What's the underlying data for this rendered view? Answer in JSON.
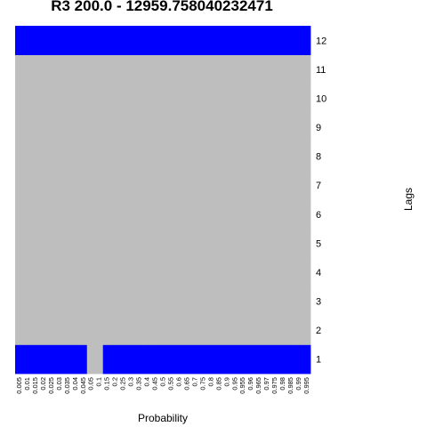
{
  "chart_data": {
    "type": "heatmap",
    "title": "R3 200.0 - 12959.758040232471",
    "xlabel": "Probability",
    "ylabel": "Lags",
    "x": [
      "0.005",
      "0.01",
      "0.015",
      "0.02",
      "0.025",
      "0.03",
      "0.035",
      "0.04",
      "0.045",
      "0.05",
      "0.1",
      "0.15",
      "0.2",
      "0.25",
      "0.3",
      "0.35",
      "0.4",
      "0.45",
      "0.5",
      "0.55",
      "0.6",
      "0.65",
      "0.7",
      "0.75",
      "0.8",
      "0.85",
      "0.9",
      "0.95",
      "0.955",
      "0.96",
      "0.965",
      "0.97",
      "0.975",
      "0.98",
      "0.985",
      "0.99",
      "0.995"
    ],
    "y": [
      "1",
      "2",
      "3",
      "4",
      "5",
      "6",
      "7",
      "8",
      "9",
      "10",
      "11",
      "12"
    ],
    "colors": {
      "1": "#0000ff",
      "0": "#bebebe"
    },
    "rows": [
      [
        1,
        1,
        1,
        1,
        1,
        1,
        1,
        1,
        1,
        0,
        0,
        1,
        1,
        1,
        1,
        1,
        1,
        1,
        1,
        1,
        1,
        1,
        1,
        1,
        1,
        1,
        1,
        1,
        1,
        1,
        1,
        1,
        1,
        1,
        1,
        1,
        1
      ],
      [
        0,
        0,
        0,
        0,
        0,
        0,
        0,
        0,
        0,
        0,
        0,
        0,
        0,
        0,
        0,
        0,
        0,
        0,
        0,
        0,
        0,
        0,
        0,
        0,
        0,
        0,
        0,
        0,
        0,
        0,
        0,
        0,
        0,
        0,
        0,
        0,
        0
      ],
      [
        0,
        0,
        0,
        0,
        0,
        0,
        0,
        0,
        0,
        0,
        0,
        0,
        0,
        0,
        0,
        0,
        0,
        0,
        0,
        0,
        0,
        0,
        0,
        0,
        0,
        0,
        0,
        0,
        0,
        0,
        0,
        0,
        0,
        0,
        0,
        0,
        0
      ],
      [
        0,
        0,
        0,
        0,
        0,
        0,
        0,
        0,
        0,
        0,
        0,
        0,
        0,
        0,
        0,
        0,
        0,
        0,
        0,
        0,
        0,
        0,
        0,
        0,
        0,
        0,
        0,
        0,
        0,
        0,
        0,
        0,
        0,
        0,
        0,
        0,
        0
      ],
      [
        0,
        0,
        0,
        0,
        0,
        0,
        0,
        0,
        0,
        0,
        0,
        0,
        0,
        0,
        0,
        0,
        0,
        0,
        0,
        0,
        0,
        0,
        0,
        0,
        0,
        0,
        0,
        0,
        0,
        0,
        0,
        0,
        0,
        0,
        0,
        0,
        0
      ],
      [
        0,
        0,
        0,
        0,
        0,
        0,
        0,
        0,
        0,
        0,
        0,
        0,
        0,
        0,
        0,
        0,
        0,
        0,
        0,
        0,
        0,
        0,
        0,
        0,
        0,
        0,
        0,
        0,
        0,
        0,
        0,
        0,
        0,
        0,
        0,
        0,
        0
      ],
      [
        0,
        0,
        0,
        0,
        0,
        0,
        0,
        0,
        0,
        0,
        0,
        0,
        0,
        0,
        0,
        0,
        0,
        0,
        0,
        0,
        0,
        0,
        0,
        0,
        0,
        0,
        0,
        0,
        0,
        0,
        0,
        0,
        0,
        0,
        0,
        0,
        0
      ],
      [
        0,
        0,
        0,
        0,
        0,
        0,
        0,
        0,
        0,
        0,
        0,
        0,
        0,
        0,
        0,
        0,
        0,
        0,
        0,
        0,
        0,
        0,
        0,
        0,
        0,
        0,
        0,
        0,
        0,
        0,
        0,
        0,
        0,
        0,
        0,
        0,
        0
      ],
      [
        0,
        0,
        0,
        0,
        0,
        0,
        0,
        0,
        0,
        0,
        0,
        0,
        0,
        0,
        0,
        0,
        0,
        0,
        0,
        0,
        0,
        0,
        0,
        0,
        0,
        0,
        0,
        0,
        0,
        0,
        0,
        0,
        0,
        0,
        0,
        0,
        0
      ],
      [
        0,
        0,
        0,
        0,
        0,
        0,
        0,
        0,
        0,
        0,
        0,
        0,
        0,
        0,
        0,
        0,
        0,
        0,
        0,
        0,
        0,
        0,
        0,
        0,
        0,
        0,
        0,
        0,
        0,
        0,
        0,
        0,
        0,
        0,
        0,
        0,
        0
      ],
      [
        0,
        0,
        0,
        0,
        0,
        0,
        0,
        0,
        0,
        0,
        0,
        0,
        0,
        0,
        0,
        0,
        0,
        0,
        0,
        0,
        0,
        0,
        0,
        0,
        0,
        0,
        0,
        0,
        0,
        0,
        0,
        0,
        0,
        0,
        0,
        0,
        0
      ],
      [
        1,
        1,
        1,
        1,
        1,
        1,
        1,
        1,
        1,
        1,
        1,
        1,
        1,
        1,
        1,
        1,
        1,
        1,
        1,
        1,
        1,
        1,
        1,
        1,
        1,
        1,
        1,
        1,
        1,
        1,
        1,
        1,
        1,
        1,
        1,
        1,
        1
      ]
    ]
  }
}
